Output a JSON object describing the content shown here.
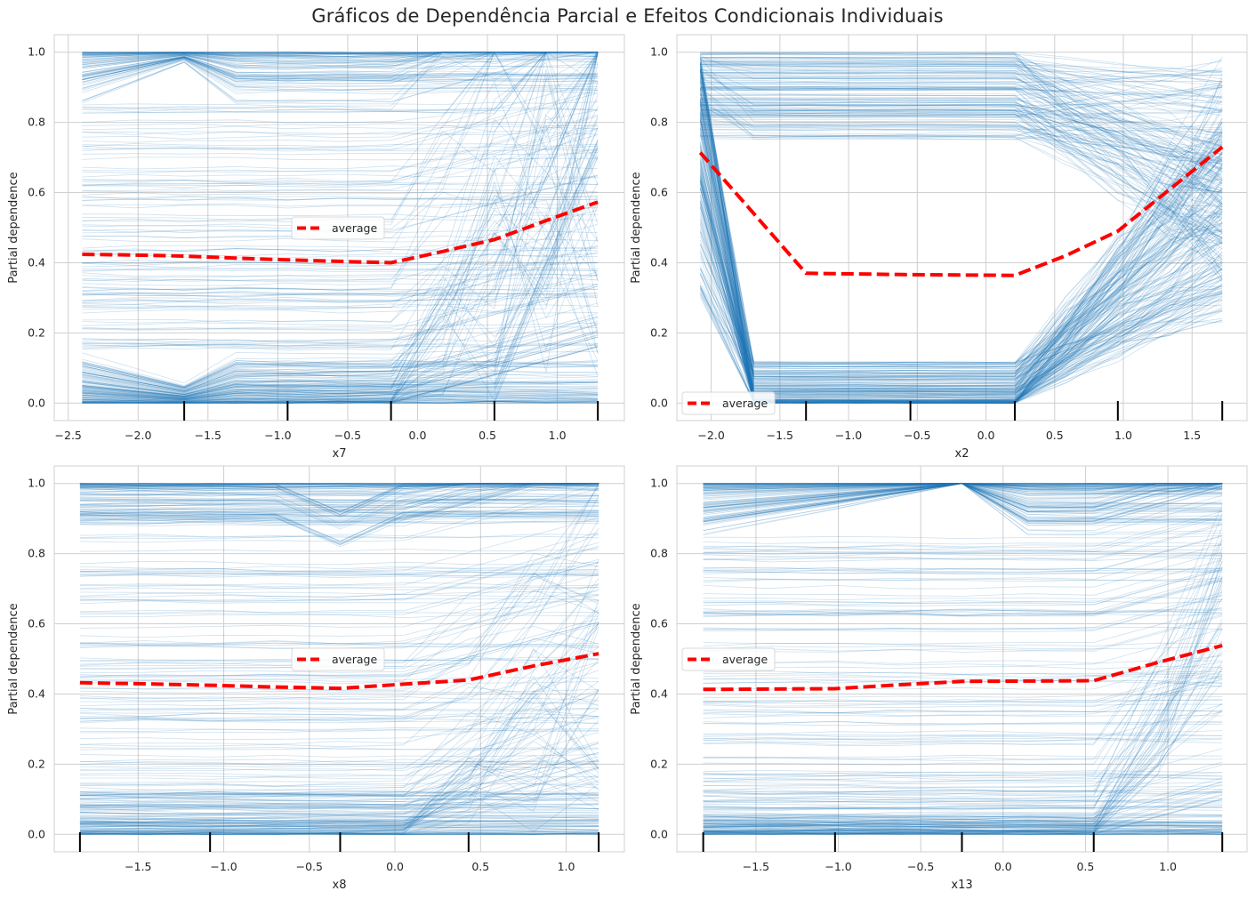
{
  "title": "Gráficos de Dependência Parcial e Efeitos Condicionais Individuais",
  "colors": {
    "ice_lines": "#1f77b4",
    "average_line": "#ff0000",
    "grid": "#cfcfcf",
    "axes_border": "#d0d0d0",
    "deciles": "#000000"
  },
  "chart_data": [
    {
      "type": "line",
      "xlabel": "x7",
      "ylabel": "Partial dependence",
      "xlim": [
        -2.6,
        1.48
      ],
      "ylim": [
        -0.05,
        1.05
      ],
      "xticks": [
        -2.5,
        -2.0,
        -1.5,
        -1.0,
        -0.5,
        0.0,
        0.5,
        1.0
      ],
      "xtick_labels": [
        "−2.5",
        "−2.0",
        "−1.5",
        "−1.0",
        "−0.5",
        "0.0",
        "0.5",
        "1.0"
      ],
      "yticks": [
        0.0,
        0.2,
        0.4,
        0.6,
        0.8,
        1.0
      ],
      "ytick_labels": [
        "0.0",
        "0.2",
        "0.4",
        "0.6",
        "0.8",
        "1.0"
      ],
      "legend": {
        "label": "average",
        "position": "center"
      },
      "grid_x": [
        -2.4,
        -2.03,
        -1.67,
        -1.3,
        -0.93,
        -0.56,
        -0.19,
        0.18,
        0.55,
        0.92,
        1.29
      ],
      "deciles": [
        -1.67,
        -0.93,
        -0.19,
        0.55,
        1.29
      ],
      "average": {
        "name": "average",
        "x": [
          -2.4,
          -2.03,
          -1.67,
          -1.3,
          -0.93,
          -0.56,
          -0.19,
          0.18,
          0.55,
          0.92,
          1.29
        ],
        "y": [
          0.424,
          0.422,
          0.419,
          0.413,
          0.408,
          0.404,
          0.4,
          0.432,
          0.466,
          0.52,
          0.573
        ]
      }
    },
    {
      "type": "line",
      "xlabel": "x2",
      "ylabel": "Partial dependence",
      "xlim": [
        -2.25,
        1.9
      ],
      "ylim": [
        -0.05,
        1.05
      ],
      "xticks": [
        -2.0,
        -1.5,
        -1.0,
        -0.5,
        0.0,
        0.5,
        1.0,
        1.5
      ],
      "xtick_labels": [
        "−2.0",
        "−1.5",
        "−1.0",
        "−0.5",
        "0.0",
        "0.5",
        "1.0",
        "1.5"
      ],
      "yticks": [
        0.0,
        0.2,
        0.4,
        0.6,
        0.8,
        1.0
      ],
      "ytick_labels": [
        "0.0",
        "0.2",
        "0.4",
        "0.6",
        "0.8",
        "1.0"
      ],
      "legend": {
        "label": "average",
        "position": "lower left"
      },
      "grid_x": [
        -2.08,
        -1.69,
        -1.31,
        -0.93,
        -0.55,
        -0.17,
        0.21,
        0.58,
        0.96,
        1.34,
        1.72
      ],
      "deciles": [
        -1.31,
        -0.55,
        0.21,
        0.96,
        1.72
      ],
      "average": {
        "name": "average",
        "x": [
          -2.08,
          -1.69,
          -1.31,
          -0.93,
          -0.55,
          -0.17,
          0.21,
          0.58,
          0.96,
          1.34,
          1.72
        ],
        "y": [
          0.714,
          0.54,
          0.37,
          0.368,
          0.366,
          0.365,
          0.364,
          0.42,
          0.49,
          0.61,
          0.73
        ]
      }
    },
    {
      "type": "line",
      "xlabel": "x8",
      "ylabel": "Partial dependence",
      "xlim": [
        -1.99,
        1.34
      ],
      "ylim": [
        -0.05,
        1.05
      ],
      "xticks": [
        -1.5,
        -1.0,
        -0.5,
        0.0,
        0.5,
        1.0
      ],
      "xtick_labels": [
        "−1.5",
        "−1.0",
        "−0.5",
        "0.0",
        "0.5",
        "1.0"
      ],
      "yticks": [
        0.0,
        0.2,
        0.4,
        0.6,
        0.8,
        1.0
      ],
      "ytick_labels": [
        "0.0",
        "0.2",
        "0.4",
        "0.6",
        "0.8",
        "1.0"
      ],
      "legend": {
        "label": "average",
        "position": "center"
      },
      "grid_x": [
        -1.84,
        -1.46,
        -1.08,
        -0.7,
        -0.32,
        0.05,
        0.43,
        0.81,
        1.19
      ],
      "deciles": [
        -1.84,
        -1.08,
        -0.32,
        0.43,
        1.19
      ],
      "average": {
        "name": "average",
        "x": [
          -1.84,
          -1.46,
          -1.08,
          -0.7,
          -0.32,
          0.05,
          0.43,
          0.81,
          1.19
        ],
        "y": [
          0.432,
          0.429,
          0.425,
          0.42,
          0.416,
          0.428,
          0.44,
          0.48,
          0.515
        ]
      }
    },
    {
      "type": "line",
      "xlabel": "x13",
      "ylabel": "Partial dependence",
      "xlim": [
        -1.98,
        1.48
      ],
      "ylim": [
        -0.05,
        1.05
      ],
      "xticks": [
        -1.5,
        -1.0,
        -0.5,
        0.0,
        0.5,
        1.0
      ],
      "xtick_labels": [
        "−1.5",
        "−1.0",
        "−0.5",
        "0.0",
        "0.5",
        "1.0"
      ],
      "yticks": [
        0.0,
        0.2,
        0.4,
        0.6,
        0.8,
        1.0
      ],
      "ytick_labels": [
        "0.0",
        "0.2",
        "0.4",
        "0.6",
        "0.8",
        "1.0"
      ],
      "legend": {
        "label": "average",
        "position": "center left"
      },
      "grid_x": [
        -1.82,
        -1.42,
        -1.02,
        -0.64,
        -0.25,
        0.15,
        0.55,
        0.94,
        1.33
      ],
      "deciles": [
        -1.82,
        -1.02,
        -0.25,
        0.55,
        1.33
      ],
      "average": {
        "name": "average",
        "x": [
          -1.82,
          -1.42,
          -1.02,
          -0.64,
          -0.25,
          0.15,
          0.55,
          0.94,
          1.33
        ],
        "y": [
          0.413,
          0.414,
          0.415,
          0.426,
          0.436,
          0.437,
          0.438,
          0.49,
          0.538
        ]
      }
    }
  ]
}
